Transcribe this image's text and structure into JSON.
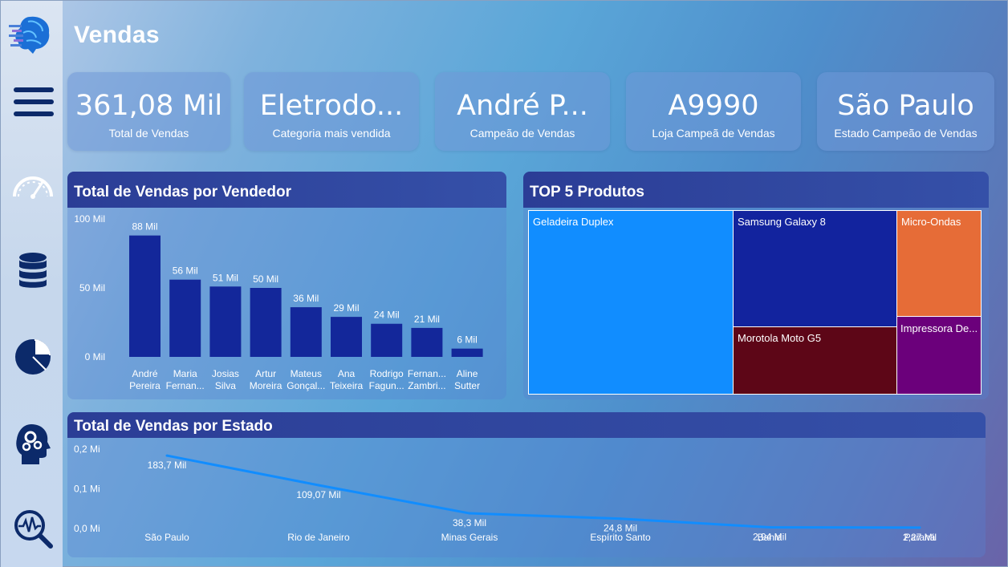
{
  "page": {
    "title": "Vendas"
  },
  "sidebar": {
    "icons": [
      "brain-logo-icon",
      "menu-icon",
      "speedometer-icon",
      "database-icon",
      "pie-chart-icon",
      "head-gears-icon",
      "magnifier-pulse-icon"
    ]
  },
  "kpis": [
    {
      "value": "361,08 Mil",
      "label": "Total de Vendas"
    },
    {
      "value": "Eletrodo...",
      "label": "Categoria mais vendida"
    },
    {
      "value": "André P...",
      "label": "Campeão de Vendas"
    },
    {
      "value": "A9990",
      "label": "Loja Campeã de Vendas"
    },
    {
      "value": "São Paulo",
      "label": "Estado Campeão de Vendas"
    }
  ],
  "sellers_panel": {
    "title": "Total de Vendas por Vendedor"
  },
  "products_panel": {
    "title": "TOP 5 Produtos"
  },
  "states_panel": {
    "title": "Total de Vendas por Estado"
  },
  "chart_data": [
    {
      "type": "bar",
      "title": "Total de Vendas por Vendedor",
      "categories": [
        [
          "André",
          "Pereira"
        ],
        [
          "Maria",
          "Fernan..."
        ],
        [
          "Josias",
          "Silva"
        ],
        [
          "Artur",
          "Moreira"
        ],
        [
          "Mateus",
          "Gonçal..."
        ],
        [
          "Ana",
          "Teixeira"
        ],
        [
          "Rodrigo",
          "Fagun..."
        ],
        [
          "Fernan...",
          "Zambri..."
        ],
        [
          "Aline",
          "Sutter"
        ]
      ],
      "values": [
        88,
        56,
        51,
        50,
        36,
        29,
        24,
        21,
        6
      ],
      "data_labels": [
        "88 Mil",
        "56 Mil",
        "51 Mil",
        "50 Mil",
        "36 Mil",
        "29 Mil",
        "24 Mil",
        "21 Mil",
        "6 Mil"
      ],
      "yticks": [
        "0 Mil",
        "50 Mil",
        "100 Mil"
      ],
      "ylim": [
        0,
        100
      ],
      "bar_color": "#13279a"
    },
    {
      "type": "treemap",
      "title": "TOP 5 Produtos",
      "items": [
        {
          "name": "Geladeira Duplex",
          "color": "#118dff"
        },
        {
          "name": "Samsung Galaxy 8",
          "color": "#12239e"
        },
        {
          "name": "Micro-Ondas",
          "color": "#e66c37"
        },
        {
          "name": "Morotola Moto G5",
          "color": "#5d0617"
        },
        {
          "name": "Impressora De...",
          "color": "#6b007b"
        }
      ]
    },
    {
      "type": "line",
      "title": "Total de Vendas por Estado",
      "categories": [
        "São Paulo",
        "Rio de Janeiro",
        "Minas Gerais",
        "Espírito Santo",
        "Bahia",
        "Paraná"
      ],
      "values": [
        183.7,
        109.07,
        38.3,
        24.8,
        2.94,
        2.27
      ],
      "data_labels": [
        "183,7 Mil",
        "109,07 Mil",
        "38,3 Mil",
        "24,8 Mil",
        "2,94 Mil",
        "2,27 Mil"
      ],
      "yticks": [
        "0,0 Mi",
        "0,1 Mi",
        "0,2 Mi"
      ],
      "ylim": [
        0,
        200
      ],
      "line_color": "#118dff"
    }
  ]
}
